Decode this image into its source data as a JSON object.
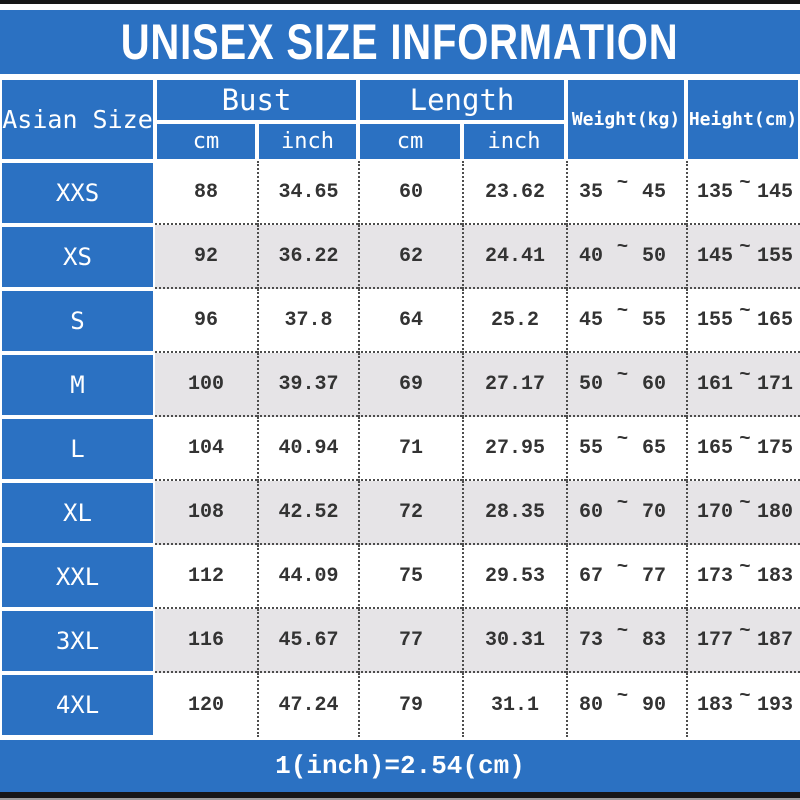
{
  "colors": {
    "blue": "#2b71c2",
    "alt_row": "#e6e4e7",
    "row": "#ffffff",
    "text": "#333333",
    "dotted_line": "#4d4d4d",
    "bar": "#161616"
  },
  "chart_data": {
    "type": "table",
    "title": "UNISEX SIZE INFORMATION",
    "footnote": "1(inch)=2.54(cm)",
    "tilde": "~",
    "header": {
      "asian_size": "Asian Size",
      "bust": "Bust",
      "length": "Length",
      "cm": "cm",
      "inch": "inch",
      "weight": "Weight(kg)",
      "height": "Height(cm)"
    },
    "columns": [
      "Asian Size",
      "Bust cm",
      "Bust inch",
      "Length cm",
      "Length inch",
      "Weight(kg)",
      "Height(cm)"
    ],
    "rows": [
      {
        "size": "XXS",
        "bust_cm": "88",
        "bust_inch": "34.65",
        "length_cm": "60",
        "length_inch": "23.62",
        "weight": [
          "35",
          "45"
        ],
        "height": [
          "135",
          "145"
        ]
      },
      {
        "size": "XS",
        "bust_cm": "92",
        "bust_inch": "36.22",
        "length_cm": "62",
        "length_inch": "24.41",
        "weight": [
          "40",
          "50"
        ],
        "height": [
          "145",
          "155"
        ]
      },
      {
        "size": "S",
        "bust_cm": "96",
        "bust_inch": "37.8",
        "length_cm": "64",
        "length_inch": "25.2",
        "weight": [
          "45",
          "55"
        ],
        "height": [
          "155",
          "165"
        ]
      },
      {
        "size": "M",
        "bust_cm": "100",
        "bust_inch": "39.37",
        "length_cm": "69",
        "length_inch": "27.17",
        "weight": [
          "50",
          "60"
        ],
        "height": [
          "161",
          "171"
        ]
      },
      {
        "size": "L",
        "bust_cm": "104",
        "bust_inch": "40.94",
        "length_cm": "71",
        "length_inch": "27.95",
        "weight": [
          "55",
          "65"
        ],
        "height": [
          "165",
          "175"
        ]
      },
      {
        "size": "XL",
        "bust_cm": "108",
        "bust_inch": "42.52",
        "length_cm": "72",
        "length_inch": "28.35",
        "weight": [
          "60",
          "70"
        ],
        "height": [
          "170",
          "180"
        ]
      },
      {
        "size": "XXL",
        "bust_cm": "112",
        "bust_inch": "44.09",
        "length_cm": "75",
        "length_inch": "29.53",
        "weight": [
          "67",
          "77"
        ],
        "height": [
          "173",
          "183"
        ]
      },
      {
        "size": "3XL",
        "bust_cm": "116",
        "bust_inch": "45.67",
        "length_cm": "77",
        "length_inch": "30.31",
        "weight": [
          "73",
          "83"
        ],
        "height": [
          "177",
          "187"
        ]
      },
      {
        "size": "4XL",
        "bust_cm": "120",
        "bust_inch": "47.24",
        "length_cm": "79",
        "length_inch": "31.1",
        "weight": [
          "80",
          "90"
        ],
        "height": [
          "183",
          "193"
        ]
      }
    ]
  }
}
